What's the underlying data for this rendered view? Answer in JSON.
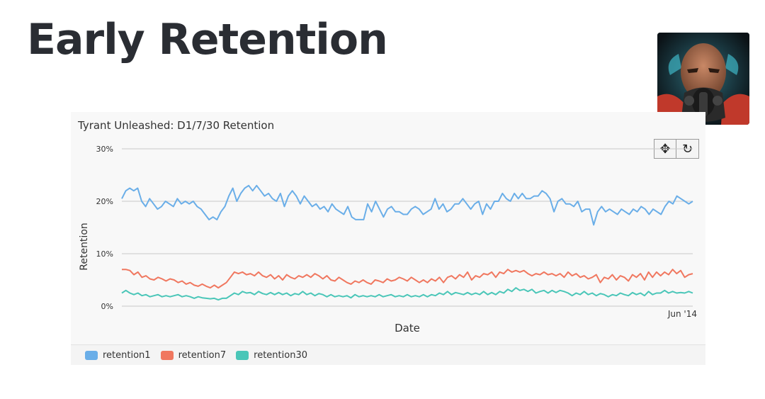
{
  "page": {
    "title": "Early Retention"
  },
  "toolbar": {
    "pan_icon": "move-icon",
    "reset_icon": "refresh-icon"
  },
  "chart_data": {
    "type": "line",
    "title": "Tyrant Unleashed: D1/7/30 Retention",
    "xlabel": "Date",
    "ylabel": "Retention",
    "ylim": [
      0,
      30
    ],
    "yticks": [
      "0%",
      "10%",
      "20%",
      "30%"
    ],
    "x_tick_labels": [
      "Jun '14"
    ],
    "grid": true,
    "legend_position": "bottom",
    "series": [
      {
        "name": "retention1",
        "color": "#6aaee8",
        "values": [
          20.5,
          22.0,
          22.5,
          22.0,
          22.5,
          20.0,
          19.0,
          20.5,
          19.5,
          18.5,
          19.0,
          20.0,
          19.5,
          19.0,
          20.5,
          19.5,
          20.0,
          19.5,
          20.0,
          19.0,
          18.5,
          17.5,
          16.5,
          17.0,
          16.5,
          18.0,
          19.0,
          21.0,
          22.5,
          20.0,
          21.5,
          22.5,
          23.0,
          22.0,
          23.0,
          22.0,
          21.0,
          21.5,
          20.5,
          20.0,
          21.5,
          19.0,
          21.0,
          22.0,
          21.0,
          19.5,
          21.0,
          20.0,
          19.0,
          19.5,
          18.5,
          19.0,
          18.0,
          19.5,
          18.5,
          18.0,
          17.5,
          19.0,
          17.0,
          16.5,
          16.5,
          16.5,
          19.5,
          18.0,
          20.0,
          18.5,
          17.0,
          18.5,
          19.0,
          18.0,
          18.0,
          17.5,
          17.5,
          18.5,
          19.0,
          18.5,
          17.5,
          18.0,
          18.5,
          20.5,
          18.5,
          19.5,
          18.0,
          18.5,
          19.5,
          19.5,
          20.5,
          19.5,
          18.5,
          19.5,
          20.0,
          17.5,
          19.5,
          18.5,
          20.0,
          20.0,
          21.5,
          20.5,
          20.0,
          21.5,
          20.5,
          21.5,
          20.5,
          20.5,
          21.0,
          21.0,
          22.0,
          21.5,
          20.5,
          18.0,
          20.0,
          20.5,
          19.5,
          19.5,
          19.0,
          20.0,
          18.0,
          18.5,
          18.5,
          15.5,
          18.0,
          19.0,
          18.0,
          18.5,
          18.0,
          17.5,
          18.5,
          18.0,
          17.5,
          18.5,
          18.0,
          19.0,
          18.5,
          17.5,
          18.5,
          18.0,
          17.5,
          19.0,
          20.0,
          19.5,
          21.0,
          20.5,
          20.0,
          19.5,
          20.0
        ]
      },
      {
        "name": "retention7",
        "color": "#f0775f",
        "values": [
          7.0,
          7.0,
          6.8,
          6.0,
          6.5,
          5.5,
          5.8,
          5.2,
          5.0,
          5.5,
          5.2,
          4.8,
          5.2,
          5.0,
          4.5,
          4.8,
          4.2,
          4.5,
          4.0,
          3.8,
          4.2,
          3.8,
          3.5,
          4.0,
          3.5,
          4.0,
          4.5,
          5.5,
          6.5,
          6.2,
          6.5,
          6.0,
          6.2,
          5.8,
          6.5,
          5.8,
          5.5,
          6.0,
          5.2,
          5.8,
          5.0,
          6.0,
          5.5,
          5.2,
          5.8,
          5.5,
          6.0,
          5.5,
          6.2,
          5.8,
          5.2,
          5.8,
          5.0,
          4.8,
          5.5,
          5.0,
          4.5,
          4.2,
          4.8,
          4.5,
          5.0,
          4.5,
          4.2,
          5.0,
          4.8,
          4.5,
          5.2,
          4.8,
          5.0,
          5.5,
          5.2,
          4.8,
          5.5,
          5.0,
          4.5,
          5.0,
          4.5,
          5.2,
          4.8,
          5.5,
          4.5,
          5.5,
          5.8,
          5.2,
          6.0,
          5.5,
          6.5,
          5.0,
          5.8,
          5.5,
          6.2,
          6.0,
          6.5,
          5.5,
          6.5,
          6.2,
          7.0,
          6.5,
          6.8,
          6.5,
          6.8,
          6.2,
          5.8,
          6.2,
          6.0,
          6.5,
          6.0,
          6.2,
          5.8,
          6.2,
          5.5,
          6.5,
          5.8,
          6.2,
          5.5,
          5.8,
          5.2,
          5.5,
          6.0,
          4.5,
          5.5,
          5.2,
          6.0,
          5.0,
          5.8,
          5.5,
          4.8,
          6.0,
          5.5,
          6.2,
          5.0,
          6.5,
          5.5,
          6.5,
          5.8,
          6.5,
          6.0,
          7.0,
          6.2,
          6.8,
          5.5,
          6.0,
          6.2
        ]
      },
      {
        "name": "retention30",
        "color": "#4ac6b8",
        "values": [
          2.5,
          3.0,
          2.5,
          2.2,
          2.5,
          2.0,
          2.2,
          1.8,
          2.0,
          2.2,
          1.8,
          2.0,
          1.8,
          2.0,
          2.2,
          1.8,
          2.0,
          1.8,
          1.5,
          1.8,
          1.6,
          1.5,
          1.4,
          1.5,
          1.2,
          1.5,
          1.5,
          2.0,
          2.5,
          2.2,
          2.8,
          2.5,
          2.6,
          2.2,
          2.8,
          2.4,
          2.2,
          2.6,
          2.2,
          2.6,
          2.2,
          2.5,
          2.0,
          2.4,
          2.2,
          2.8,
          2.2,
          2.5,
          2.0,
          2.4,
          2.2,
          1.8,
          2.2,
          1.8,
          2.0,
          1.8,
          2.0,
          1.6,
          2.2,
          1.8,
          2.0,
          1.8,
          2.0,
          1.8,
          2.2,
          1.8,
          2.0,
          2.2,
          1.8,
          2.0,
          1.8,
          2.2,
          1.8,
          2.0,
          1.8,
          2.2,
          1.8,
          2.2,
          2.0,
          2.5,
          2.2,
          2.8,
          2.2,
          2.6,
          2.4,
          2.2,
          2.6,
          2.2,
          2.5,
          2.2,
          2.8,
          2.2,
          2.6,
          2.2,
          2.8,
          2.5,
          3.2,
          2.8,
          3.5,
          3.0,
          3.2,
          2.8,
          3.2,
          2.5,
          2.8,
          3.0,
          2.5,
          3.0,
          2.6,
          3.0,
          2.8,
          2.5,
          2.0,
          2.5,
          2.2,
          2.8,
          2.2,
          2.5,
          2.0,
          2.4,
          2.2,
          1.8,
          2.2,
          2.0,
          2.5,
          2.2,
          2.0,
          2.6,
          2.2,
          2.5,
          2.0,
          2.8,
          2.2,
          2.5,
          2.5,
          3.0,
          2.5,
          2.8,
          2.5,
          2.6,
          2.5,
          2.8,
          2.5
        ]
      }
    ]
  }
}
